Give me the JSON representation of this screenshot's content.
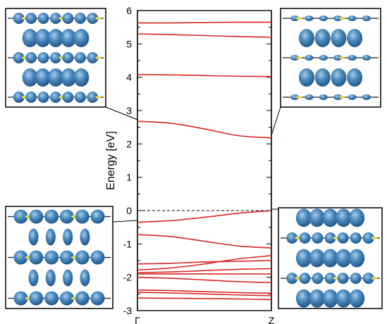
{
  "chart_data": {
    "type": "line",
    "ylabel": "Energy [eV]",
    "ylim": [
      -3,
      6
    ],
    "yticks": [
      -3,
      -2,
      -1,
      0,
      1,
      2,
      3,
      4,
      5,
      6
    ],
    "xticks": [
      "Γ",
      "Z"
    ],
    "x": [
      0,
      0.25,
      0.5,
      0.75,
      1
    ],
    "fermi_level": 0,
    "band_color": "#d62728",
    "fermi_line_color": "#000000",
    "charge_density_color": "#3a78b0",
    "atom_color": "#e8d84a",
    "series": [
      {
        "values": [
          -2.62,
          -2.63,
          -2.64,
          -2.65,
          -2.67
        ]
      },
      {
        "values": [
          -2.45,
          -2.47,
          -2.5,
          -2.53,
          -2.55
        ]
      },
      {
        "values": [
          -2.38,
          -2.4,
          -2.43,
          -2.46,
          -2.48
        ]
      },
      {
        "values": [
          -2.0,
          -2.03,
          -2.08,
          -2.13,
          -2.16
        ]
      },
      {
        "values": [
          -1.9,
          -1.9,
          -1.9,
          -1.9,
          -1.9
        ]
      },
      {
        "values": [
          -1.86,
          -1.84,
          -1.8,
          -1.76,
          -1.74
        ]
      },
      {
        "values": [
          -1.78,
          -1.72,
          -1.6,
          -1.45,
          -1.35
        ]
      },
      {
        "values": [
          -1.6,
          -1.58,
          -1.54,
          -1.52,
          -1.5
        ]
      },
      {
        "values": [
          -0.72,
          -0.78,
          -0.92,
          -1.06,
          -1.12
        ]
      },
      {
        "values": [
          -0.35,
          -0.3,
          -0.2,
          -0.08,
          0.0
        ]
      },
      {
        "values": [
          2.68,
          2.62,
          2.45,
          2.25,
          2.18
        ]
      },
      {
        "values": [
          4.08,
          4.07,
          4.05,
          4.03,
          4.02
        ]
      },
      {
        "values": [
          5.3,
          5.28,
          5.25,
          5.22,
          5.2
        ]
      },
      {
        "values": [
          5.63,
          5.63,
          5.64,
          5.65,
          5.65
        ]
      }
    ]
  }
}
